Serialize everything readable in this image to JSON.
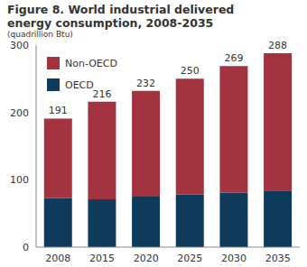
{
  "chart_data": {
    "type": "bar",
    "title": "Figure 8. World industrial delivered energy consumption, 2008-2035",
    "subtitle": "(quadrillion Btu)",
    "categories": [
      "2008",
      "2015",
      "2020",
      "2025",
      "2030",
      "2035"
    ],
    "series": [
      {
        "name": "OECD",
        "color": "#0e3a5c",
        "values": [
          73,
          71,
          75,
          78,
          81,
          84
        ]
      },
      {
        "name": "Non-OECD",
        "color": "#a3333f",
        "values": [
          118,
          145,
          157,
          172,
          188,
          204
        ]
      }
    ],
    "totals": [
      191,
      216,
      232,
      250,
      269,
      288
    ],
    "stacked": true,
    "ylim": [
      0,
      300
    ],
    "yticks": [
      0,
      100,
      200,
      300
    ],
    "grid": false,
    "legend": "upper left"
  }
}
